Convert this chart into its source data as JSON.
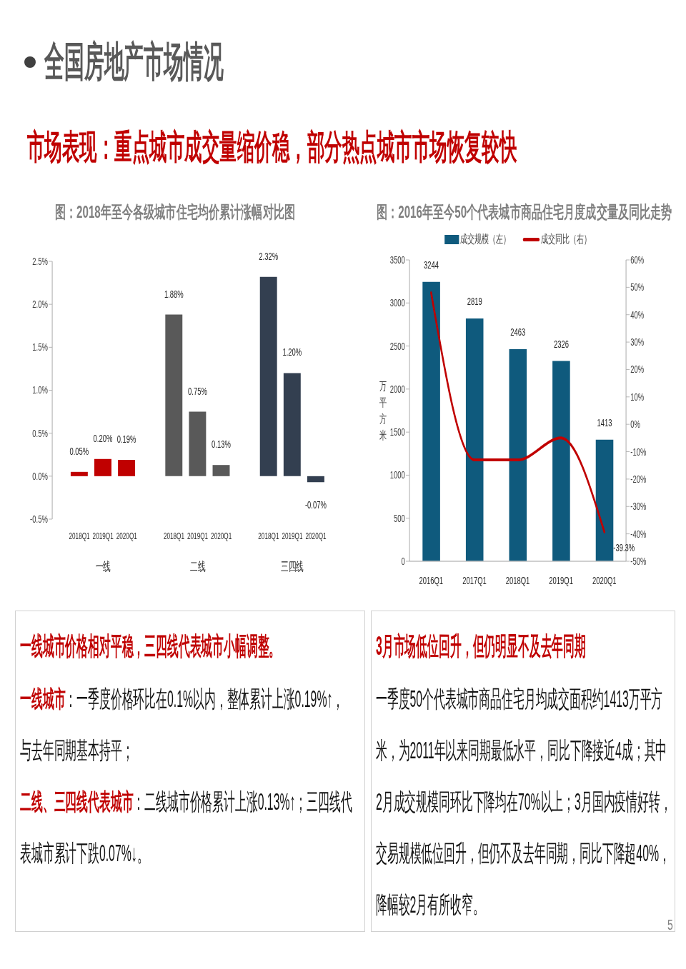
{
  "chart_data": [
    {
      "type": "other",
      "title": "全国房地产市场情况",
      "subtitle": "市场表现：重点城市成交量缩价稳，部分热点城市市场恢复较快",
      "annotations": [
        "5"
      ]
    },
    {
      "type": "bar",
      "title": "图：2018年至今各级城市住宅均价累计涨幅对比图",
      "categories": [
        "2018Q1",
        "2019Q1",
        "2020Q1",
        null,
        "2018Q1",
        "2019Q1",
        "2020Q1",
        null,
        "2018Q1",
        "2019Q1",
        "2020Q1"
      ],
      "values": [
        0.05,
        0.2,
        0.19,
        null,
        1.88,
        0.75,
        0.13,
        null,
        2.32,
        1.2,
        -0.07
      ],
      "colors": [
        "#c00000",
        "#c00000",
        "#c00000",
        null,
        "#595959",
        "#595959",
        "#595959",
        null,
        "#333f50",
        "#333f50",
        "#333f50"
      ],
      "value_labels": [
        "0.05%",
        "0.20%",
        "0.19%",
        null,
        "1.88%",
        "0.75%",
        "0.13%",
        null,
        "2.32%",
        "1.20%",
        "-0.07%"
      ],
      "annotations": [
        "一线",
        "二线",
        "三四线"
      ],
      "ylim": [
        -0.5,
        2.5
      ],
      "yticks": [
        {
          "value": -0.5,
          "label": "-0.5%"
        },
        {
          "value": 0,
          "label": "0.0%"
        },
        {
          "value": 0.5,
          "label": "0.5%"
        },
        {
          "value": 1,
          "label": "1.0%"
        },
        {
          "value": 1.5,
          "label": "1.5%"
        },
        {
          "value": 2,
          "label": "2.0%"
        },
        {
          "value": 2.5,
          "label": "2.5%"
        }
      ]
    },
    {
      "type": "bar",
      "title": "图：2016年至今50个代表城市商品住宅月度成交量及同比走势",
      "categories": [
        "2016Q1",
        "2017Q1",
        "2018Q1",
        "2019Q1",
        "2020Q1"
      ],
      "series": [
        {
          "name": "成交规模（左）",
          "type": "bar",
          "color": "#0f5a7d",
          "values": [
            3244,
            2819,
            2463,
            2326,
            1413
          ],
          "value_labels": [
            "3244",
            "2819",
            "2463",
            "2326",
            "1413"
          ]
        },
        {
          "name": "成交同比（右）",
          "type": "line",
          "axis": "y2",
          "color": "#c00000",
          "values": [
            48,
            -13,
            -13,
            -5,
            -39.3
          ],
          "value_labels": [
            null,
            null,
            null,
            null,
            "-39.3%"
          ]
        }
      ],
      "ylabel": "万平方米",
      "ylim": [
        0,
        3500
      ],
      "yticks": [
        0,
        500,
        1000,
        1500,
        2000,
        2500,
        3000,
        3500
      ],
      "y2lim": [
        -50,
        60
      ],
      "y2ticks": [
        {
          "value": -50,
          "label": "-50%"
        },
        {
          "value": -40,
          "label": "-40%"
        },
        {
          "value": -30,
          "label": "-30%"
        },
        {
          "value": -20,
          "label": "-20%"
        },
        {
          "value": -10,
          "label": "-10%"
        },
        {
          "value": 0,
          "label": "0%"
        },
        {
          "value": 10,
          "label": "10%"
        },
        {
          "value": 20,
          "label": "20%"
        },
        {
          "value": 30,
          "label": "30%"
        },
        {
          "value": 40,
          "label": "40%"
        },
        {
          "value": 50,
          "label": "50%"
        },
        {
          "value": 60,
          "label": "60%"
        }
      ],
      "legend": "top",
      "marker": "none"
    },
    {
      "type": "other",
      "title": "一线城市价格相对平稳，三四线代表城市小幅调整。",
      "annotations": [
        "一线城市",
        "：一季度价格环比在0.1%以内，整体累计上涨0.19%↑，",
        "与去年同期基本持平；",
        "二线、三四线代表城市",
        "：二线城市价格累计上涨0.13%↑；三四线代",
        "表城市累计下跌0.07%↓。"
      ]
    },
    {
      "type": "other",
      "title": "3月市场低位回升，但仍明显不及去年同期",
      "annotations": [
        "一季度50个代表城市商品住宅月均成交面积约1413万平方米，为2011年以来同期最低水平，同比下降接近4成；其中2月成交规模同环比下降均在70%以上；3月国内疫情好转，交易规模低位回升，但仍不及去年同期，同比下降超40%，降幅较2月有所收窄。"
      ]
    }
  ]
}
